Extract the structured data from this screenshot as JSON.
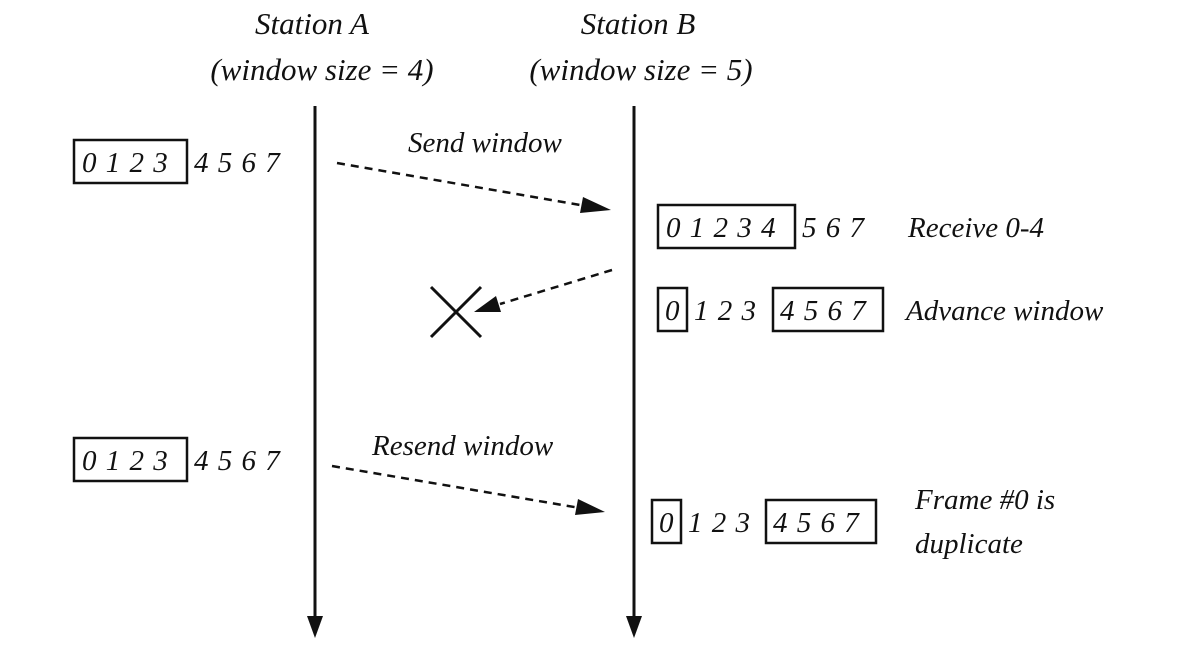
{
  "stations": {
    "a": {
      "name": "Station A",
      "window": "(window size = 4)"
    },
    "b": {
      "name": "Station B",
      "window": "(window size = 5)"
    }
  },
  "messages": {
    "send": "Send window",
    "resend": "Resend window"
  },
  "sequences": {
    "a_first": {
      "boxed": "0 1 2 3",
      "rest": "4 5 6 7"
    },
    "b_first": {
      "boxed": "0 1 2 3 4",
      "rest": "5 6 7"
    },
    "b_second": {
      "boxed_left": "0",
      "middle": "1 2 3",
      "boxed_right": "4 5 6 7"
    },
    "a_second": {
      "boxed": "0 1 2 3",
      "rest": "4 5 6 7"
    },
    "b_third": {
      "boxed_left": "0",
      "middle": "1 2 3",
      "boxed_right": "4 5 6 7"
    }
  },
  "notes": {
    "receive": "Receive 0-4",
    "advance": "Advance window",
    "duplicate_line1": "Frame #0 is",
    "duplicate_line2": "duplicate"
  }
}
